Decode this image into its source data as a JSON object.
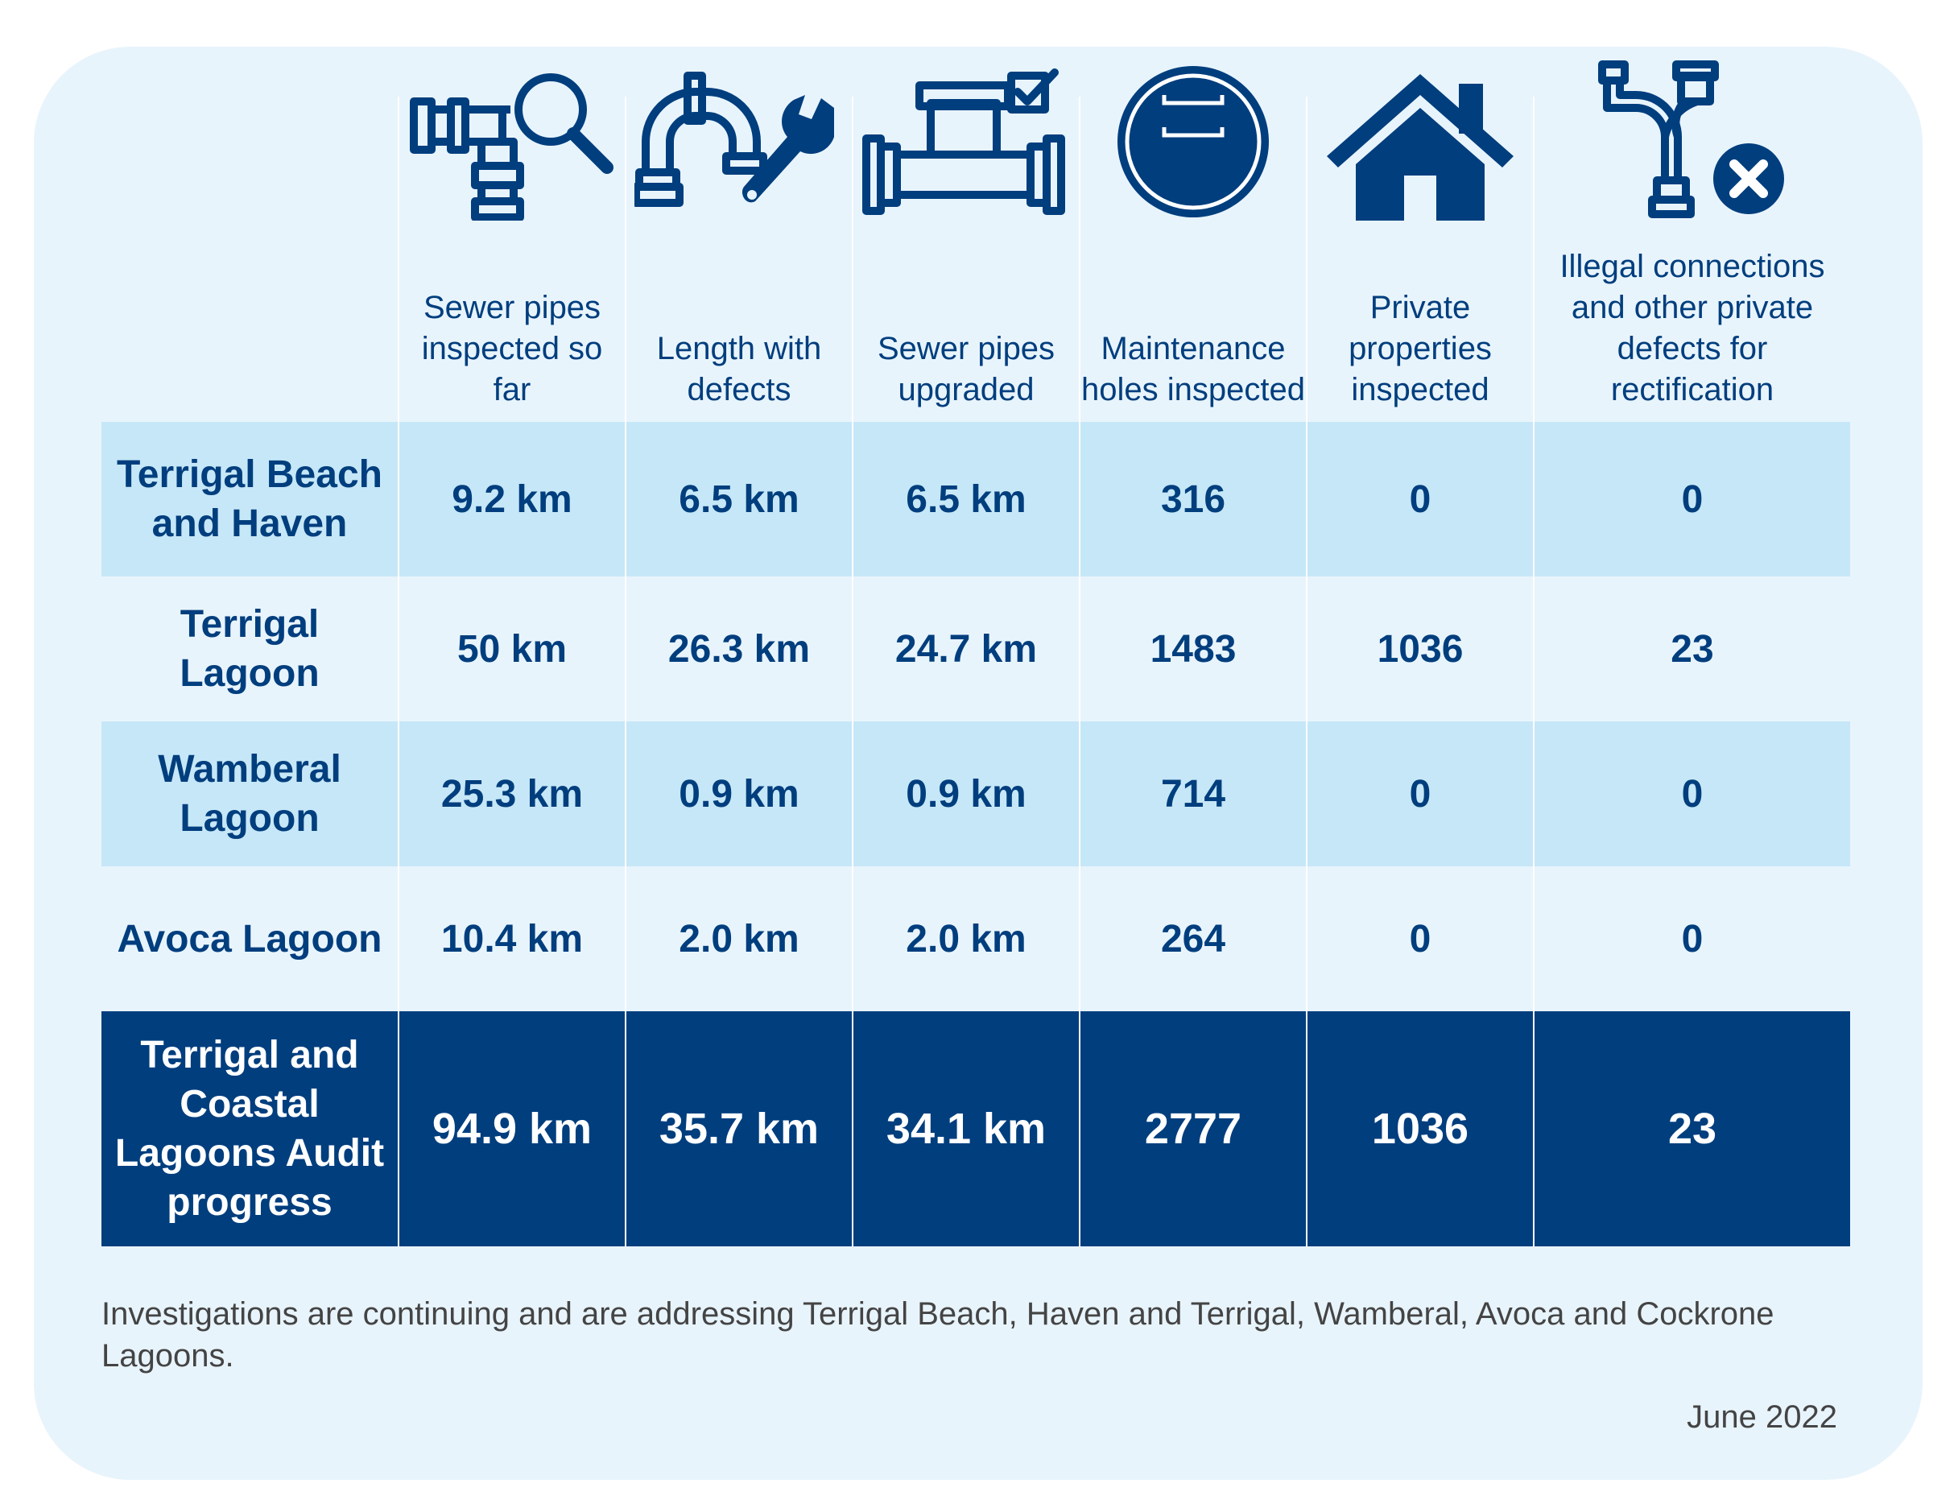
{
  "colors": {
    "navy": "#003e7e",
    "light_row": "#c6e7f7",
    "card_bg": "#e8f4fc"
  },
  "columns": [
    {
      "icon": "pipe-magnifier-icon",
      "label": "Sewer pipes inspected so far"
    },
    {
      "icon": "pipe-wrench-icon",
      "label": "Length with defects"
    },
    {
      "icon": "pipe-checkbox-icon",
      "label": "Sewer pipes upgraded"
    },
    {
      "icon": "maintenance-hole-icon",
      "label": "Maintenance holes inspected"
    },
    {
      "icon": "house-icon",
      "label": "Private properties inspected"
    },
    {
      "icon": "pipe-x-icon",
      "label": "Illegal connections and other private defects for rectification"
    }
  ],
  "rows": [
    {
      "name": "Terrigal Beach and Haven",
      "values": [
        "9.2 km",
        "6.5 km",
        "6.5 km",
        "316",
        "0",
        "0"
      ]
    },
    {
      "name": "Terrigal Lagoon",
      "values": [
        "50 km",
        "26.3 km",
        "24.7 km",
        "1483",
        "1036",
        "23"
      ]
    },
    {
      "name": "Wamberal Lagoon",
      "values": [
        "25.3 km",
        "0.9 km",
        "0.9 km",
        "714",
        "0",
        "0"
      ]
    },
    {
      "name": "Avoca Lagoon",
      "values": [
        "10.4 km",
        "2.0 km",
        "2.0 km",
        "264",
        "0",
        "0"
      ]
    }
  ],
  "total": {
    "name": "Terrigal and Coastal Lagoons Audit progress",
    "values": [
      "94.9 km",
      "35.7 km",
      "34.1 km",
      "2777",
      "1036",
      "23"
    ]
  },
  "note": "Investigations are continuing and are addressing Terrigal Beach, Haven and Terrigal, Wamberal, Avoca and Cockrone Lagoons.",
  "date": "June 2022"
}
